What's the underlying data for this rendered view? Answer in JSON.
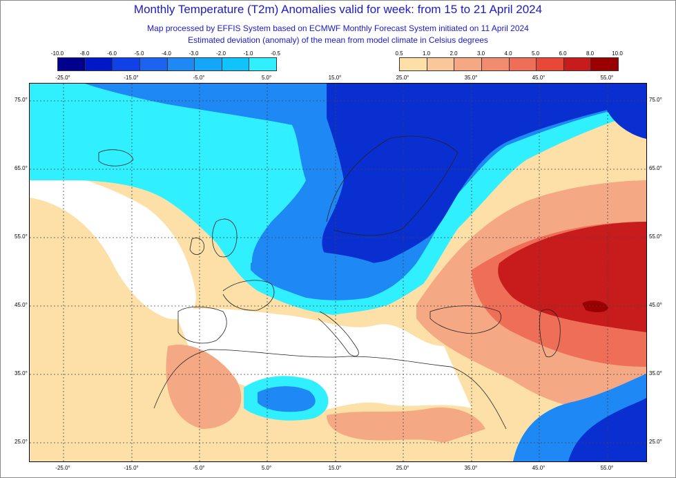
{
  "title": "Monthly Temperature (T2m) Anomalies valid for week: from 15 to 21 April 2024",
  "subtitle_1": "Map processed by EFFIS System based on ECMWF Monthly Forecast System initiated on 11 April 2024",
  "subtitle_2": "Estimated deviation (anomaly) of the mean from model climate in Celsius degrees",
  "legend_cold": {
    "labels": [
      "-10.0",
      "-8.0",
      "-6.0",
      "-5.0",
      "-4.0",
      "-3.0",
      "-2.0",
      "-1.0",
      "-0.5"
    ],
    "colors": [
      "#00008c",
      "#0018c8",
      "#1040e8",
      "#1c64f0",
      "#1e88f5",
      "#14a6f8",
      "#10c4fb",
      "#30f0ff"
    ]
  },
  "legend_warm": {
    "labels": [
      "0.5",
      "1.0",
      "2.0",
      "3.0",
      "4.0",
      "5.0",
      "6.0",
      "8.0",
      "10.0"
    ],
    "colors": [
      "#fde0a8",
      "#f8c89a",
      "#f5a884",
      "#f28c70",
      "#ee6e58",
      "#e84838",
      "#c81c1c",
      "#9a0000"
    ]
  },
  "lon_labels": [
    "-25.0°",
    "-15.0°",
    "-5.0°",
    "5.0°",
    "15.0°",
    "25.0°",
    "35.0°",
    "45.0°",
    "55.0°"
  ],
  "lat_labels": [
    "75.0°",
    "65.0°",
    "55.0°",
    "45.0°",
    "35.0°",
    "25.0°"
  ],
  "palette": {
    "cold_deep": "#0a2fd0",
    "cold_mid": "#1e88f5",
    "cold_light": "#30f0ff",
    "neutral": "#ffffff",
    "warm_light": "#fde0a8",
    "warm_mid": "#f5a884",
    "warm_strong": "#ee6e58",
    "warm_deep": "#c81c1c",
    "warm_max": "#9a0000",
    "coast": "#222222",
    "grid": "#444444"
  }
}
